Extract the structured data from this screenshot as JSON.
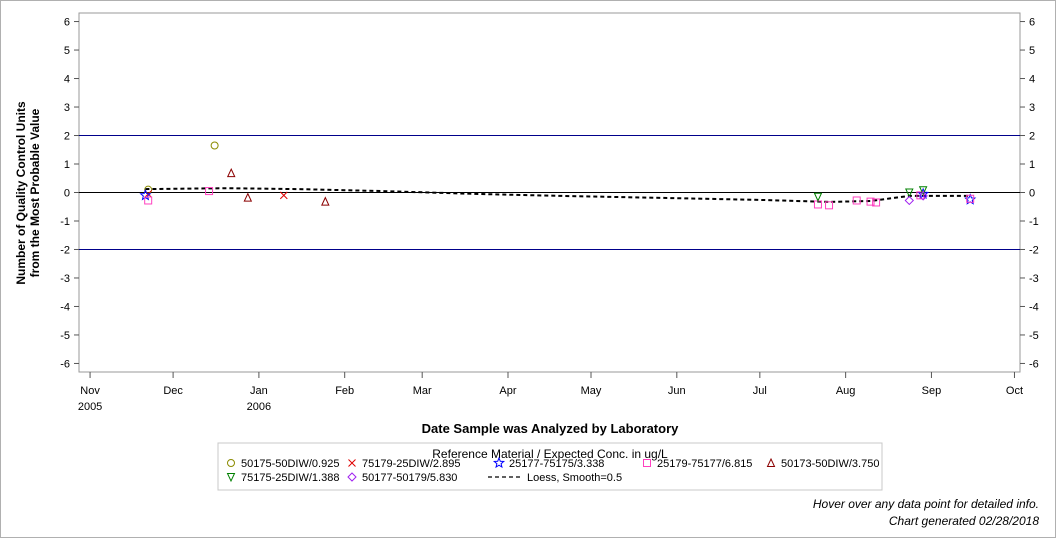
{
  "chart_data": {
    "type": "scatter",
    "xlabel": "Date Sample was Analyzed by Laboratory",
    "ylabel_line1": "Number of Quality Control Units",
    "ylabel_line2": "from the Most Probable Value",
    "ylim": [
      -6.3,
      6.3
    ],
    "yticks": [
      "6",
      "5",
      "4",
      "3",
      "2",
      "1",
      "0",
      "-1",
      "-2",
      "-3",
      "-4",
      "-5",
      "-6"
    ],
    "xlim": [
      "2005-10-28",
      "2006-10-03"
    ],
    "xticks": [
      {
        "date": "2005-11-01",
        "label": "Nov",
        "label2": "2005"
      },
      {
        "date": "2005-12-01",
        "label": "Dec",
        "label2": ""
      },
      {
        "date": "2006-01-01",
        "label": "Jan",
        "label2": "2006"
      },
      {
        "date": "2006-02-01",
        "label": "Feb",
        "label2": ""
      },
      {
        "date": "2006-03-01",
        "label": "Mar",
        "label2": ""
      },
      {
        "date": "2006-04-01",
        "label": "Apr",
        "label2": ""
      },
      {
        "date": "2006-05-01",
        "label": "May",
        "label2": ""
      },
      {
        "date": "2006-06-01",
        "label": "Jun",
        "label2": ""
      },
      {
        "date": "2006-07-01",
        "label": "Jul",
        "label2": ""
      },
      {
        "date": "2006-08-01",
        "label": "Aug",
        "label2": ""
      },
      {
        "date": "2006-09-01",
        "label": "Sep",
        "label2": ""
      },
      {
        "date": "2006-10-01",
        "label": "Oct",
        "label2": ""
      }
    ],
    "reference_lines": [
      {
        "y": 2,
        "color": "#00008b"
      },
      {
        "y": 0,
        "color": "#000000"
      },
      {
        "y": -2,
        "color": "#00008b"
      }
    ],
    "legend_title": "Reference Material / Expected Conc. in ug/L",
    "series": [
      {
        "name": "50175-50DIW/0.925",
        "marker": "circle",
        "color": "#8b8b00",
        "points": [
          {
            "x": "2005-11-22",
            "y": 0.1
          },
          {
            "x": "2005-12-16",
            "y": 1.65
          }
        ]
      },
      {
        "name": "75179-25DIW/2.895",
        "marker": "x",
        "color": "#e00000",
        "points": [
          {
            "x": "2005-11-22",
            "y": -0.05
          },
          {
            "x": "2006-01-10",
            "y": -0.1
          }
        ]
      },
      {
        "name": "25177-75175/3.338",
        "marker": "star",
        "color": "#0000ff",
        "points": [
          {
            "x": "2005-11-21",
            "y": -0.1
          },
          {
            "x": "2006-08-29",
            "y": -0.05
          },
          {
            "x": "2006-09-15",
            "y": -0.25
          }
        ]
      },
      {
        "name": "25179-75177/6.815",
        "marker": "square",
        "color": "#ff40c0",
        "points": [
          {
            "x": "2005-11-22",
            "y": -0.28
          },
          {
            "x": "2005-12-14",
            "y": 0.05
          },
          {
            "x": "2006-07-22",
            "y": -0.42
          },
          {
            "x": "2006-07-26",
            "y": -0.45
          },
          {
            "x": "2006-08-05",
            "y": -0.28
          },
          {
            "x": "2006-08-10",
            "y": -0.32
          },
          {
            "x": "2006-08-12",
            "y": -0.35
          },
          {
            "x": "2006-08-28",
            "y": -0.1
          },
          {
            "x": "2006-09-15",
            "y": -0.22
          }
        ]
      },
      {
        "name": "50173-50DIW/3.750",
        "marker": "triangle",
        "color": "#8b0000",
        "points": [
          {
            "x": "2005-12-22",
            "y": 0.68
          },
          {
            "x": "2005-12-28",
            "y": -0.18
          },
          {
            "x": "2006-01-25",
            "y": -0.32
          }
        ]
      },
      {
        "name": "75175-25DIW/1.388",
        "marker": "triangle-down",
        "color": "#008000",
        "points": [
          {
            "x": "2006-07-22",
            "y": -0.15
          },
          {
            "x": "2006-08-24",
            "y": 0.0
          },
          {
            "x": "2006-08-29",
            "y": 0.08
          }
        ]
      },
      {
        "name": "50177-50179/5.830",
        "marker": "diamond",
        "color": "#a020f0",
        "points": [
          {
            "x": "2006-08-24",
            "y": -0.28
          },
          {
            "x": "2006-08-29",
            "y": -0.12
          }
        ]
      },
      {
        "name": "Loess, Smooth=0.5",
        "marker": "dashed-line",
        "color": "#000000",
        "line": [
          {
            "x": "2005-11-21",
            "y": 0.12
          },
          {
            "x": "2005-12-20",
            "y": 0.15
          },
          {
            "x": "2006-01-15",
            "y": 0.12
          },
          {
            "x": "2006-02-15",
            "y": 0.05
          },
          {
            "x": "2006-03-20",
            "y": -0.05
          },
          {
            "x": "2006-04-20",
            "y": -0.12
          },
          {
            "x": "2006-06-01",
            "y": -0.2
          },
          {
            "x": "2006-07-01",
            "y": -0.26
          },
          {
            "x": "2006-07-26",
            "y": -0.33
          },
          {
            "x": "2006-08-10",
            "y": -0.3
          },
          {
            "x": "2006-08-24",
            "y": -0.12
          },
          {
            "x": "2006-09-15",
            "y": -0.12
          }
        ]
      }
    ]
  },
  "footer": {
    "hover_note": "Hover over any data point for detailed info.",
    "generated": "Chart generated 02/28/2018"
  }
}
